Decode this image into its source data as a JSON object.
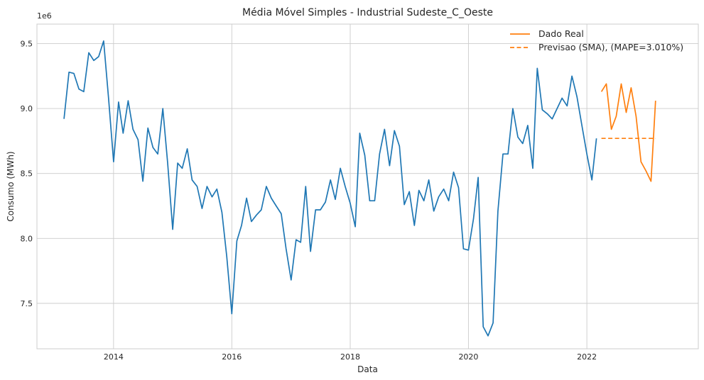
{
  "chart_data": {
    "type": "line",
    "title": "Média Móvel Simples - Industrial Sudeste_C_Oeste",
    "xlabel": "Data",
    "ylabel": "Consumo (MWh)",
    "y_offset_label": "1e6",
    "y_multiplier": 1000000,
    "xlim": [
      "2012-09-15",
      "2023-11-20"
    ],
    "ylim": [
      7.15,
      9.65
    ],
    "x_ticks": [
      {
        "date": "2014-01-01",
        "label": "2014"
      },
      {
        "date": "2016-01-01",
        "label": "2016"
      },
      {
        "date": "2018-01-01",
        "label": "2018"
      },
      {
        "date": "2020-01-01",
        "label": "2020"
      },
      {
        "date": "2022-01-01",
        "label": "2022"
      }
    ],
    "y_ticks": [
      {
        "value": 7.5,
        "label": "7.5"
      },
      {
        "value": 8.0,
        "label": "8.0"
      },
      {
        "value": 8.5,
        "label": "8.5"
      },
      {
        "value": 9.0,
        "label": "9.0"
      },
      {
        "value": 9.5,
        "label": "9.5"
      }
    ],
    "grid": true,
    "legend_position": "top-right",
    "series": [
      {
        "name": "Dado Real",
        "style": "solid",
        "color": "#1f77b4",
        "legend": false,
        "x": [
          "2013-03-01",
          "2013-04-01",
          "2013-05-01",
          "2013-06-01",
          "2013-07-01",
          "2013-08-01",
          "2013-09-01",
          "2013-10-01",
          "2013-11-01",
          "2013-12-01",
          "2014-01-01",
          "2014-02-01",
          "2014-03-01",
          "2014-04-01",
          "2014-05-01",
          "2014-06-01",
          "2014-07-01",
          "2014-08-01",
          "2014-09-01",
          "2014-10-01",
          "2014-11-01",
          "2014-12-01",
          "2015-01-01",
          "2015-02-01",
          "2015-03-01",
          "2015-04-01",
          "2015-05-01",
          "2015-06-01",
          "2015-07-01",
          "2015-08-01",
          "2015-09-01",
          "2015-10-01",
          "2015-11-01",
          "2015-12-01",
          "2016-01-01",
          "2016-02-01",
          "2016-03-01",
          "2016-04-01",
          "2016-05-01",
          "2016-06-01",
          "2016-07-01",
          "2016-08-01",
          "2016-09-01",
          "2016-10-01",
          "2016-11-01",
          "2016-12-01",
          "2017-01-01",
          "2017-02-01",
          "2017-03-01",
          "2017-04-01",
          "2017-05-01",
          "2017-06-01",
          "2017-07-01",
          "2017-08-01",
          "2017-09-01",
          "2017-10-01",
          "2017-11-01",
          "2017-12-01",
          "2018-01-01",
          "2018-02-01",
          "2018-03-01",
          "2018-04-01",
          "2018-05-01",
          "2018-06-01",
          "2018-07-01",
          "2018-08-01",
          "2018-09-01",
          "2018-10-01",
          "2018-11-01",
          "2018-12-01",
          "2019-01-01",
          "2019-02-01",
          "2019-03-01",
          "2019-04-01",
          "2019-05-01",
          "2019-06-01",
          "2019-07-01",
          "2019-08-01",
          "2019-09-01",
          "2019-10-01",
          "2019-11-01",
          "2019-12-01",
          "2020-01-01",
          "2020-02-01",
          "2020-03-01",
          "2020-04-01",
          "2020-05-01",
          "2020-06-01",
          "2020-07-01",
          "2020-08-01",
          "2020-09-01",
          "2020-10-01",
          "2020-11-01",
          "2020-12-01",
          "2021-01-01",
          "2021-02-01",
          "2021-03-01",
          "2021-04-01",
          "2021-05-01",
          "2021-06-01",
          "2021-07-01",
          "2021-08-01",
          "2021-09-01",
          "2021-10-01",
          "2021-11-01",
          "2021-12-01",
          "2022-01-01",
          "2022-02-01",
          "2022-03-01"
        ],
        "values": [
          8.92,
          9.28,
          9.27,
          9.15,
          9.13,
          9.43,
          9.37,
          9.4,
          9.52,
          9.08,
          8.59,
          9.05,
          8.81,
          9.06,
          8.84,
          8.76,
          8.44,
          8.85,
          8.7,
          8.65,
          9.0,
          8.58,
          8.07,
          8.58,
          8.54,
          8.69,
          8.45,
          8.4,
          8.23,
          8.4,
          8.32,
          8.38,
          8.2,
          7.86,
          7.42,
          7.98,
          8.1,
          8.31,
          8.13,
          8.18,
          8.22,
          8.4,
          8.31,
          8.25,
          8.19,
          7.92,
          7.68,
          7.99,
          7.97,
          8.4,
          7.9,
          8.22,
          8.22,
          8.28,
          8.45,
          8.3,
          8.54,
          8.4,
          8.27,
          8.09,
          8.81,
          8.64,
          8.29,
          8.29,
          8.65,
          8.84,
          8.56,
          8.83,
          8.71,
          8.26,
          8.36,
          8.1,
          8.37,
          8.29,
          8.45,
          8.21,
          8.32,
          8.38,
          8.29,
          8.51,
          8.39,
          7.92,
          7.91,
          8.15,
          8.47,
          7.32,
          7.25,
          7.35,
          8.21,
          8.65,
          8.65,
          9.0,
          8.78,
          8.73,
          8.87,
          8.54,
          9.31,
          8.99,
          8.96,
          8.92,
          9.0,
          9.08,
          9.02,
          9.25,
          9.09,
          8.87,
          8.65,
          8.45,
          8.77
        ]
      },
      {
        "name": "Dado Real",
        "style": "solid",
        "color": "#ff7f0e",
        "legend": true,
        "x": [
          "2022-04-01",
          "2022-05-01",
          "2022-06-01",
          "2022-07-01",
          "2022-08-01",
          "2022-09-01",
          "2022-10-01",
          "2022-11-01",
          "2022-12-01",
          "2023-01-01",
          "2023-02-01",
          "2023-03-01"
        ],
        "values": [
          9.13,
          9.19,
          8.84,
          8.94,
          9.19,
          8.97,
          9.16,
          8.94,
          8.59,
          8.52,
          8.44,
          9.06
        ]
      },
      {
        "name": "Previsao (SMA), (MAPE=3.010%)",
        "style": "dashed",
        "color": "#ff7f0e",
        "legend": true,
        "x": [
          "2022-04-01",
          "2023-03-01"
        ],
        "values": [
          8.77,
          8.77
        ]
      }
    ]
  }
}
